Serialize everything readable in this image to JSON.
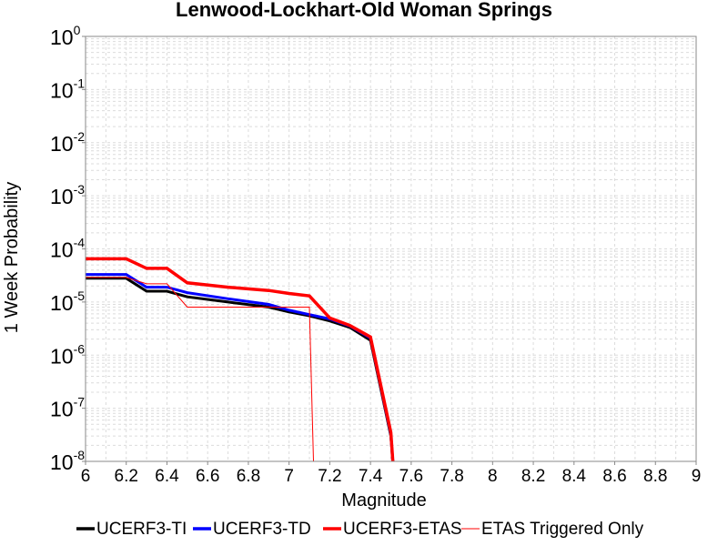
{
  "chart_data": {
    "type": "line",
    "title": "Lenwood-Lockhart-Old Woman Springs",
    "xlabel": "Magnitude",
    "ylabel": "1 Week Probability",
    "xlim": [
      6,
      9
    ],
    "ylim": [
      1e-08,
      1
    ],
    "y_scale": "log",
    "grid": true,
    "legend_position": "bottom",
    "x_ticks": [
      "6",
      "6.2",
      "6.4",
      "6.6",
      "6.8",
      "7",
      "7.2",
      "7.4",
      "7.6",
      "7.8",
      "8",
      "8.2",
      "8.4",
      "8.6",
      "8.8",
      "9"
    ],
    "y_ticks": [
      {
        "base": "10",
        "exp": "0"
      },
      {
        "base": "10",
        "exp": "-1"
      },
      {
        "base": "10",
        "exp": "-2"
      },
      {
        "base": "10",
        "exp": "-3"
      },
      {
        "base": "10",
        "exp": "-4"
      },
      {
        "base": "10",
        "exp": "-5"
      },
      {
        "base": "10",
        "exp": "-6"
      },
      {
        "base": "10",
        "exp": "-7"
      },
      {
        "base": "10",
        "exp": "-8"
      }
    ],
    "series": [
      {
        "name": "UCERF3-TI",
        "color": "#000000",
        "x": [
          6.0,
          6.2,
          6.3,
          6.4,
          6.5,
          6.7,
          6.9,
          7.0,
          7.1,
          7.2,
          7.3,
          7.4,
          7.5,
          7.51
        ],
        "y": [
          2.8e-05,
          2.8e-05,
          1.6e-05,
          1.6e-05,
          1.25e-05,
          1e-05,
          8e-06,
          6.5e-06,
          5.5e-06,
          4.4e-06,
          3.3e-06,
          1.9e-06,
          3e-08,
          1e-08
        ]
      },
      {
        "name": "UCERF3-TD",
        "color": "#0000ff",
        "x": [
          6.0,
          6.2,
          6.3,
          6.4,
          6.5,
          6.7,
          6.9,
          7.0,
          7.1,
          7.2,
          7.3,
          7.4,
          7.5,
          7.51
        ],
        "y": [
          3.3e-05,
          3.3e-05,
          1.9e-05,
          1.9e-05,
          1.5e-05,
          1.15e-05,
          9e-06,
          7e-06,
          5.8e-06,
          4.8e-06,
          3.5e-06,
          2.1e-06,
          3.2e-08,
          1e-08
        ]
      },
      {
        "name": "UCERF3-ETAS",
        "color": "#ff0000",
        "x": [
          6.0,
          6.2,
          6.3,
          6.4,
          6.5,
          6.7,
          6.9,
          7.0,
          7.1,
          7.2,
          7.3,
          7.4,
          7.5,
          7.51
        ],
        "y": [
          6.5e-05,
          6.5e-05,
          4.3e-05,
          4.3e-05,
          2.3e-05,
          1.9e-05,
          1.65e-05,
          1.45e-05,
          1.3e-05,
          5e-06,
          3.6e-06,
          2.2e-06,
          3.5e-08,
          1e-08
        ]
      },
      {
        "name": "ETAS Triggered Only",
        "color": "#ff0000",
        "x": [
          6.0,
          6.2,
          6.3,
          6.4,
          6.5,
          6.7,
          6.9,
          7.0,
          7.1,
          7.12
        ],
        "y": [
          2.9e-05,
          2.9e-05,
          2.2e-05,
          2.2e-05,
          8e-06,
          8e-06,
          8e-06,
          8e-06,
          8e-06,
          1e-08
        ]
      }
    ]
  }
}
